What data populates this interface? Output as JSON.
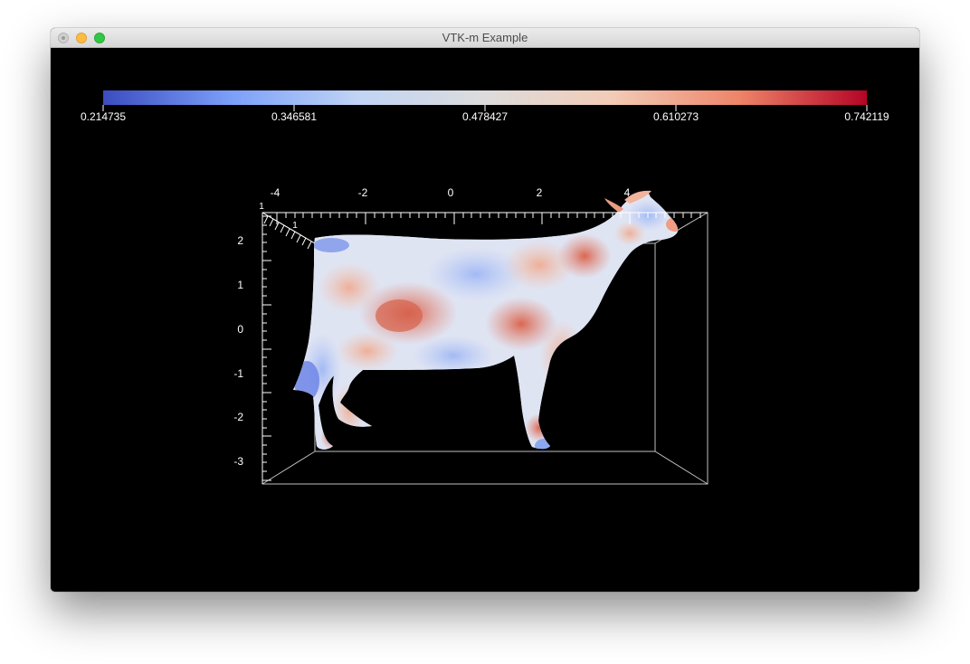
{
  "window": {
    "title": "VTK-m Example"
  },
  "colorbar": {
    "gradient": [
      "#3b4cc0",
      "#7b9ff9",
      "#c0d4f5",
      "#dddcdc",
      "#f2cbb7",
      "#ee8468",
      "#b40426"
    ],
    "labels": [
      "0.214735",
      "0.346581",
      "0.478427",
      "0.610273",
      "0.742119"
    ]
  },
  "axes": {
    "x_tick_labels": [
      "-4",
      "-2",
      "0",
      "2",
      "4"
    ],
    "y_tick_labels": [
      "2",
      "1",
      "0",
      "-1",
      "-2",
      "-3"
    ],
    "z_tick_labels": [
      "1",
      "1"
    ]
  },
  "colors": {
    "background": "#000000",
    "axis_color": "#ffffff",
    "bbox_color": "#bfbfbf"
  }
}
